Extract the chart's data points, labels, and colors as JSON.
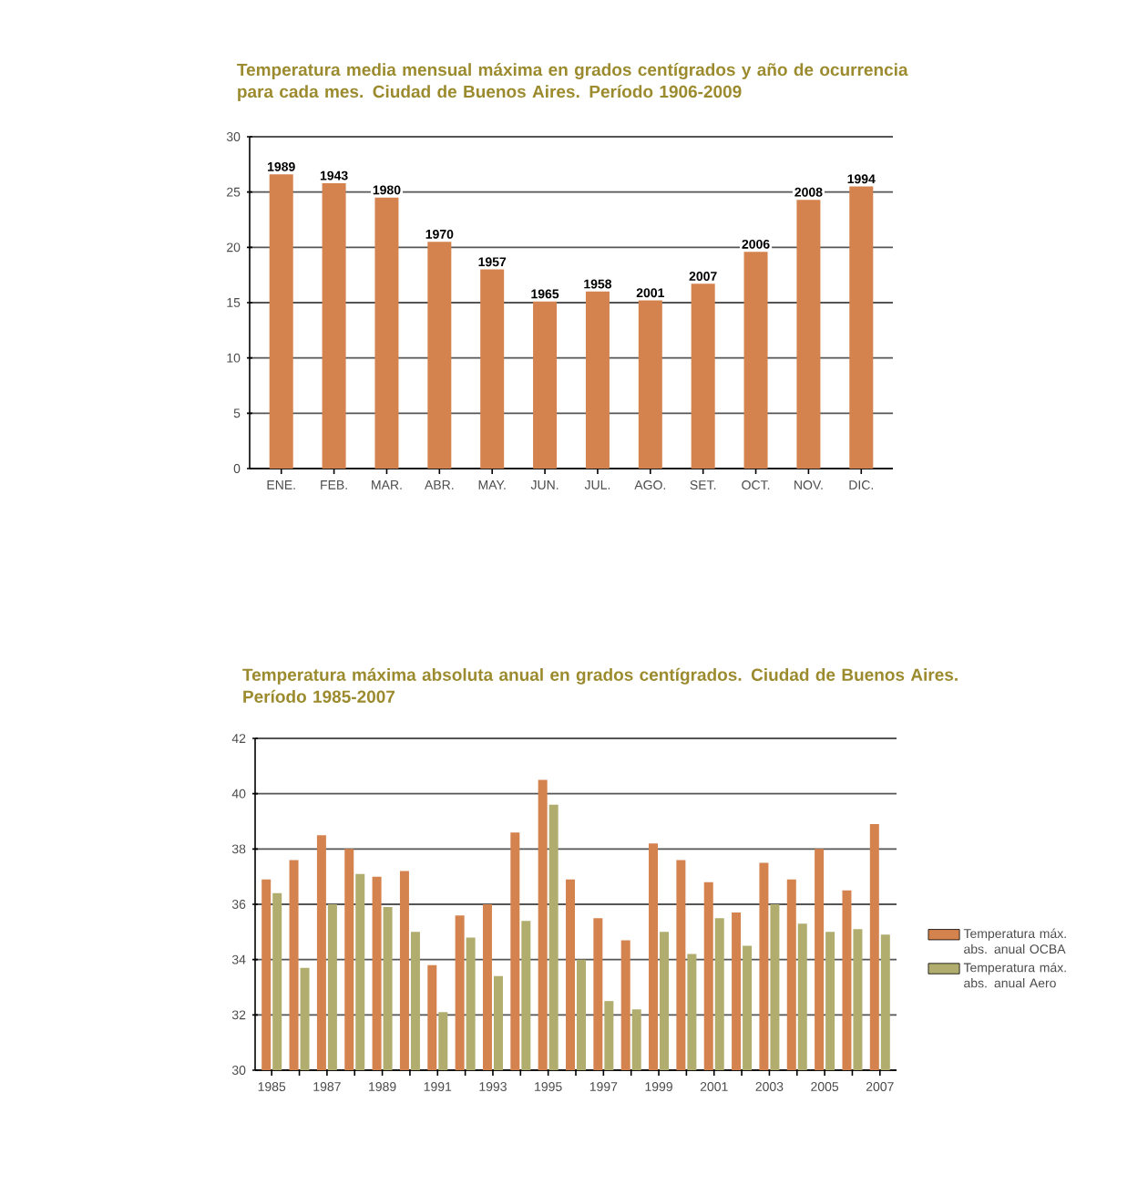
{
  "chart_data": [
    {
      "type": "bar",
      "title": "Temperatura media mensual máxima en grados centígrados y año de ocurrencia para cada mes. Ciudad de Buenos Aires. Período 1906-2009",
      "categories": [
        "ENE.",
        "FEB.",
        "MAR.",
        "ABR.",
        "MAY.",
        "JUN.",
        "JUL.",
        "AGO.",
        "SET.",
        "OCT.",
        "NOV.",
        "DIC."
      ],
      "values": [
        26.6,
        25.8,
        24.5,
        20.5,
        18.0,
        15.1,
        16.0,
        15.2,
        16.7,
        19.6,
        24.3,
        25.5
      ],
      "annotations": [
        {
          "text": "1989",
          "x": "ENE.",
          "y": 26.6
        },
        {
          "text": "1943",
          "x": "FEB.",
          "y": 25.8
        },
        {
          "text": "1980",
          "x": "MAR.",
          "y": 24.5
        },
        {
          "text": "1970",
          "x": "ABR.",
          "y": 20.5
        },
        {
          "text": "1957",
          "x": "MAY.",
          "y": 18.0
        },
        {
          "text": "1965",
          "x": "JUN.",
          "y": 15.1
        },
        {
          "text": "1958",
          "x": "JUL.",
          "y": 16.0
        },
        {
          "text": "2001",
          "x": "AGO.",
          "y": 15.2
        },
        {
          "text": "2007",
          "x": "SET.",
          "y": 16.7
        },
        {
          "text": "2006",
          "x": "OCT.",
          "y": 19.6
        },
        {
          "text": "2008",
          "x": "NOV.",
          "y": 24.3
        },
        {
          "text": "1994",
          "x": "DIC.",
          "y": 25.5
        }
      ],
      "color": "#d4834e",
      "ylim": [
        0,
        30
      ],
      "yticks": [
        0,
        5,
        10,
        15,
        20,
        25,
        30
      ],
      "grid": "y"
    },
    {
      "type": "bar",
      "title": "Temperatura máxima absoluta anual en grados centígrados. Ciudad de Buenos Aires. Período 1985-2007",
      "categories": [
        "1985",
        null,
        "1987",
        null,
        "1989",
        null,
        "1991",
        null,
        "1993",
        null,
        "1995",
        null,
        "1997",
        null,
        "1999",
        null,
        "2001",
        null,
        "2003",
        null,
        "2005",
        null,
        "2007"
      ],
      "series": [
        {
          "name": "Temperatura máx. abs. anual OCBA",
          "color": "#d4834e",
          "values": [
            36.9,
            37.6,
            38.5,
            38.0,
            37.0,
            37.2,
            33.8,
            35.6,
            36.0,
            38.6,
            40.5,
            36.9,
            35.5,
            34.7,
            38.2,
            37.6,
            36.8,
            35.7,
            37.5,
            36.9,
            38.0,
            36.5,
            38.9
          ]
        },
        {
          "name": "Temperatura máx. abs. anual Aero",
          "color": "#b0ad6e",
          "values": [
            36.4,
            33.7,
            36.0,
            37.1,
            35.9,
            35.0,
            32.1,
            34.8,
            33.4,
            35.4,
            39.6,
            34.0,
            32.5,
            32.2,
            35.0,
            34.2,
            35.5,
            34.5,
            36.0,
            35.3,
            35.0,
            35.1,
            34.9
          ]
        }
      ],
      "ylim": [
        30,
        42
      ],
      "yticks": [
        30,
        32,
        34,
        36,
        38,
        40,
        42
      ],
      "grid": "y",
      "legend": "right"
    }
  ]
}
